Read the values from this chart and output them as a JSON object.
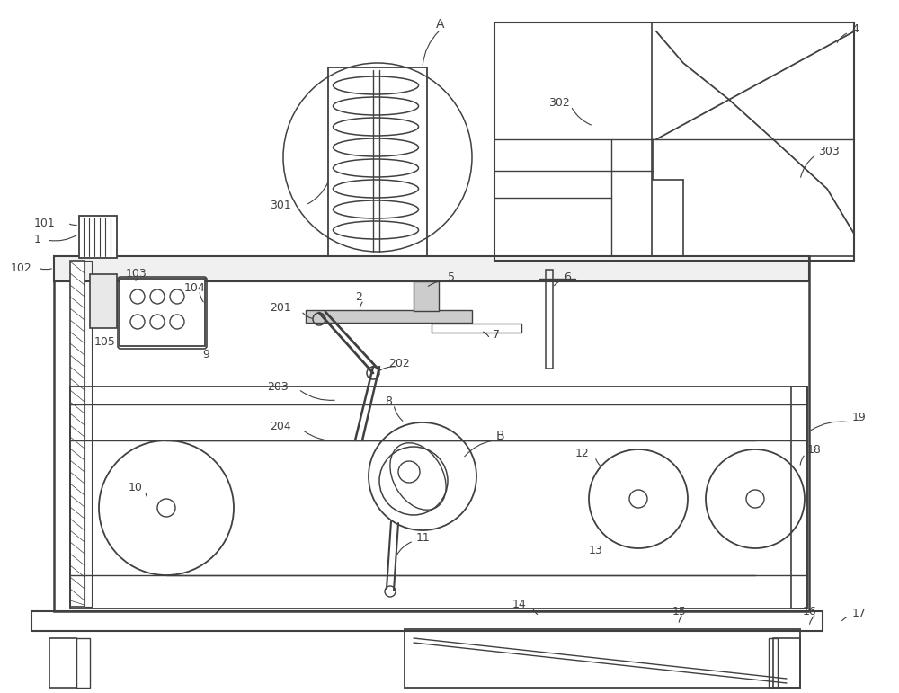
{
  "bg_color": "#ffffff",
  "lc": "#404040",
  "fig_w": 10.0,
  "fig_h": 7.71
}
